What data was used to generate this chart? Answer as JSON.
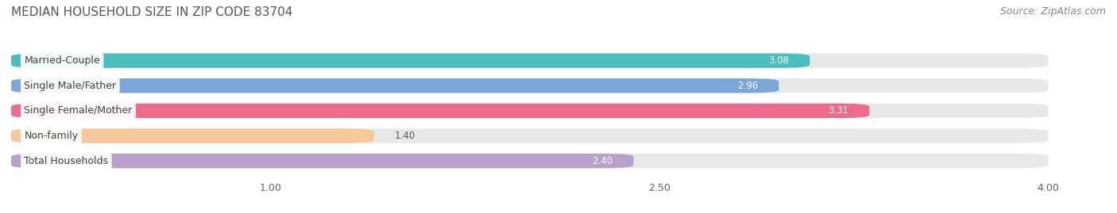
{
  "title": "MEDIAN HOUSEHOLD SIZE IN ZIP CODE 83704",
  "source": "Source: ZipAtlas.com",
  "categories": [
    "Married-Couple",
    "Single Male/Father",
    "Single Female/Mother",
    "Non-family",
    "Total Households"
  ],
  "values": [
    3.08,
    2.96,
    3.31,
    1.4,
    2.4
  ],
  "bar_colors": [
    "#4BBFBE",
    "#7BA7D8",
    "#EE6B8B",
    "#F5C99A",
    "#B89FCC"
  ],
  "value_labels": [
    "3.08",
    "2.96",
    "3.31",
    "1.40",
    "2.40"
  ],
  "xlim": [
    0,
    4.2
  ],
  "xmin": 0,
  "xmax": 4.0,
  "xticks": [
    1.0,
    2.5,
    4.0
  ],
  "xtick_labels": [
    "1.00",
    "2.50",
    "4.00"
  ],
  "background_color": "#ffffff",
  "bar_track_color": "#e8e8e8",
  "title_fontsize": 11,
  "source_fontsize": 9,
  "label_fontsize": 9,
  "value_fontsize": 8.5,
  "tick_fontsize": 9,
  "bar_height": 0.58,
  "figsize": [
    14.06,
    2.69
  ],
  "dpi": 100
}
